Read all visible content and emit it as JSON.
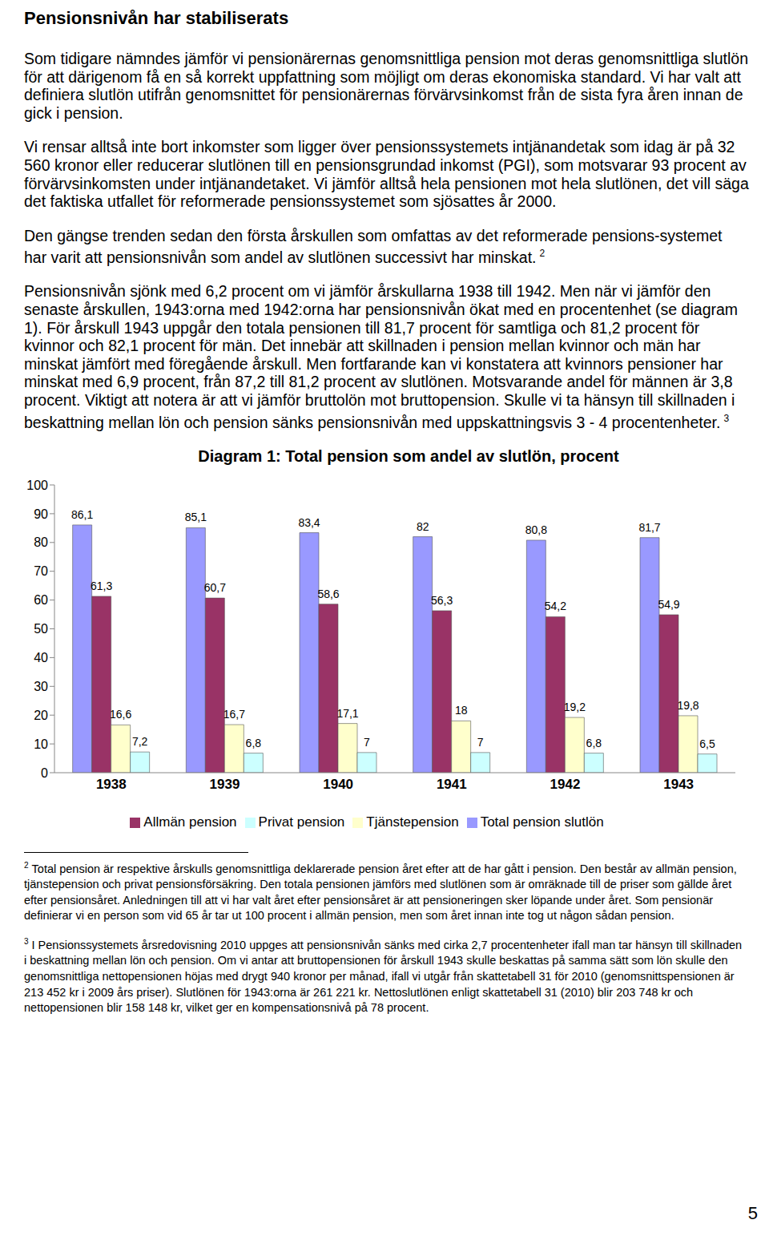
{
  "heading": "Pensionsnivån har stabiliserats",
  "paragraphs": [
    {
      "text": "Som tidigare nämndes jämför vi pensionärernas genomsnittliga pension mot deras genomsnittliga slutlön för att därigenom få en så korrekt uppfattning som möjligt om deras ekonomiska standard. Vi har valt att definiera slutlön utifrån genomsnittet för pensionärernas förvärvsinkomst från de sista fyra åren innan de gick i pension."
    },
    {
      "text": "Vi rensar alltså inte bort inkomster som ligger över pensionssystemets intjänandetak som idag är på 32 560 kronor eller reducerar slutlönen till en pensionsgrundad inkomst (PGI), som motsvarar 93 procent av förvärvsinkomsten under intjänandetaket. Vi jämför alltså hela pensionen mot hela slutlönen, det vill säga det faktiska utfallet för reformerade pensionssystemet som sjösattes år 2000."
    },
    {
      "text": "Den gängse trenden sedan den första årskullen som omfattas av det reformerade pensions-systemet har varit att pensionsnivån som andel av slutlönen successivt har minskat.",
      "note": "2"
    },
    {
      "text": "Pensionsnivån sjönk med 6,2 procent om vi jämför årskullarna 1938 till 1942. Men när vi jämför den senaste årskullen, 1943:orna med 1942:orna har pensionsnivån ökat med en procentenhet (se diagram 1). För årskull 1943 uppgår den totala pensionen till 81,7 procent för samtliga och 81,2 procent för kvinnor och 82,1 procent för män. Det innebär att skillnaden i pension mellan kvinnor och män har minskat jämfört med föregående årskull. Men fortfarande kan vi konstatera att kvinnors pensioner har minskat med 6,9 procent, från 87,2 till 81,2 procent av slutlönen. Motsvarande andel för männen är 3,8 procent. Viktigt att notera är att vi jämför bruttolön mot bruttopension. Skulle vi ta hänsyn till skillnaden i beskattning mellan lön och pension sänks pensionsnivån med uppskattningsvis 3 - 4 procentenheter.",
      "note": "3"
    }
  ],
  "chart_data": {
    "type": "bar",
    "title": "Diagram 1: Total pension som andel av slutlön, procent",
    "categories": [
      "1938",
      "1939",
      "1940",
      "1941",
      "1942",
      "1943"
    ],
    "series": [
      {
        "name": "Total pension slutlön",
        "color": "#9999ff",
        "values": [
          86.1,
          85.1,
          83.4,
          82,
          80.8,
          81.7
        ],
        "value_labels": [
          "86,1",
          "85,1",
          "83,4",
          "82",
          "80,8",
          "81,7"
        ]
      },
      {
        "name": "Allmän pension",
        "color": "#993366",
        "values": [
          61.3,
          60.7,
          58.6,
          56.3,
          54.2,
          54.9
        ],
        "value_labels": [
          "61,3",
          "60,7",
          "58,6",
          "56,3",
          "54,2",
          "54,9"
        ]
      },
      {
        "name": "Tjänstepension",
        "color": "#ffffcc",
        "values": [
          16.6,
          16.7,
          17.1,
          18,
          19.2,
          19.8
        ],
        "value_labels": [
          "16,6",
          "16,7",
          "17,1",
          "18",
          "19,2",
          "19,8"
        ]
      },
      {
        "name": "Privat pension",
        "color": "#ccffff",
        "values": [
          7.2,
          6.8,
          7,
          7,
          6.8,
          6.5
        ],
        "value_labels": [
          "7,2",
          "6,8",
          "7",
          "7",
          "6,8",
          "6,5"
        ]
      }
    ],
    "ylim": [
      0,
      100
    ],
    "yticks": [
      0,
      10,
      20,
      30,
      40,
      50,
      60,
      70,
      80,
      90,
      100
    ],
    "grid": false,
    "legend": "bottom",
    "data_labels": true
  },
  "footnotes": [
    {
      "mark": "2",
      "text": "Total pension är respektive årskulls genomsnittliga deklarerade pension året efter att de har gått i pension. Den består av allmän pension, tjänstepension och privat pensionsförsäkring. Den totala pensionen jämförs med slutlönen som är omräknade till de priser som gällde året efter pensionsåret. Anledningen till att vi har valt året efter pensionsåret är att pensioneringen sker löpande under året. Som pensionär definierar vi en person som vid 65 år tar ut 100 procent i allmän pension, men som året innan inte tog ut någon sådan pension."
    },
    {
      "mark": "3",
      "text": "I Pensionssystemets årsredovisning 2010 uppges att pensionsnivån sänks med cirka 2,7 procentenheter ifall man tar hänsyn till skillnaden i beskattning mellan lön och pension. Om vi antar att bruttopensionen för årskull 1943 skulle beskattas på samma sätt som lön skulle den genomsnittliga nettopensionen höjas med drygt 940 kronor per månad, ifall vi utgår från skattetabell 31 för 2010 (genomsnittspensionen är 213 452 kr i 2009 års priser). Slutlönen för 1943:orna är 261 221 kr. Nettoslutlönen enligt skattetabell 31 (2010) blir 203 748 kr och nettopensionen blir 158 148 kr, vilket ger en kompensationsnivå på 78 procent."
    }
  ],
  "page_number": "5"
}
